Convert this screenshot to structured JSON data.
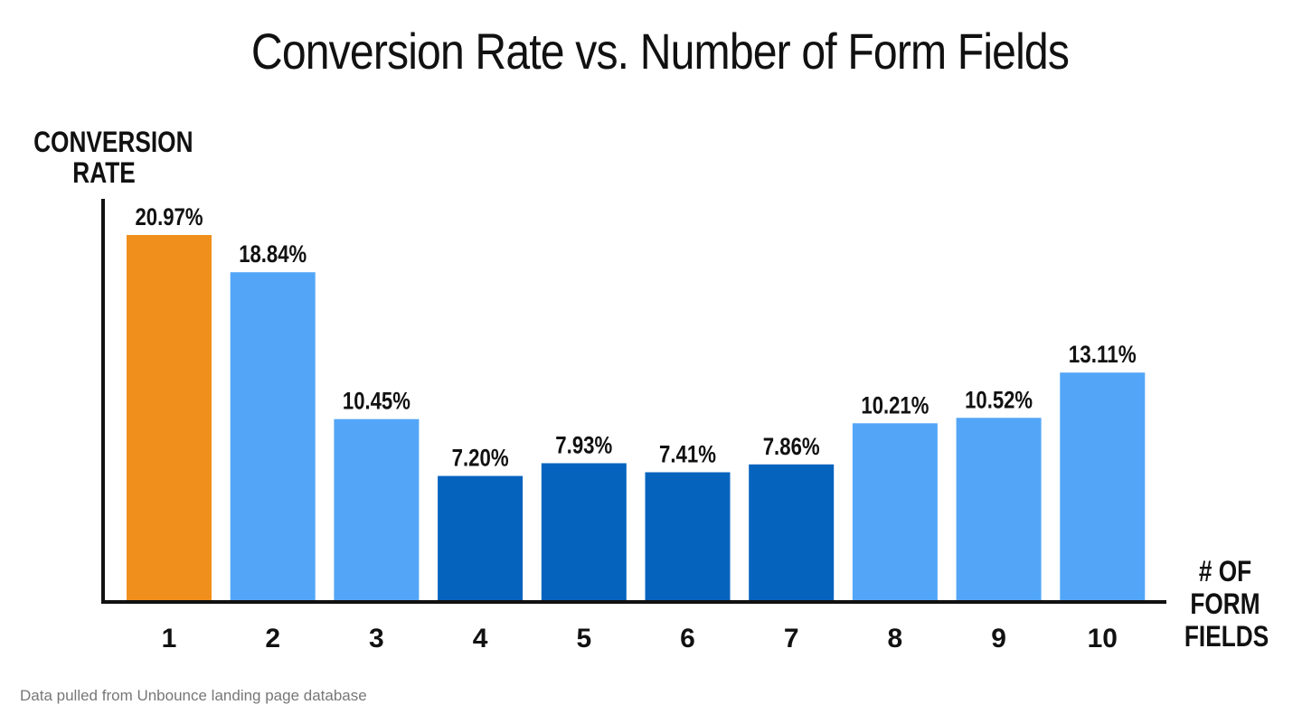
{
  "chart_data": {
    "type": "bar",
    "title": "Conversion Rate vs. Number of Form Fields",
    "ylabel_lines": [
      "CONVERSION",
      "RATE"
    ],
    "xlabel_lines": [
      "# OF",
      "FORM",
      "FIELDS"
    ],
    "categories": [
      "1",
      "2",
      "3",
      "4",
      "5",
      "6",
      "7",
      "8",
      "9",
      "10"
    ],
    "values": [
      20.97,
      18.84,
      10.45,
      7.2,
      7.93,
      7.41,
      7.86,
      10.21,
      10.52,
      13.11
    ],
    "value_labels": [
      "20.97%",
      "18.84%",
      "10.45%",
      "7.20%",
      "7.93%",
      "7.41%",
      "7.86%",
      "10.21%",
      "10.52%",
      "13.11%"
    ],
    "unit": "%",
    "ylim": [
      0,
      24
    ],
    "grid": false,
    "bar_colors": [
      "#F18F1C",
      "#53A6F7",
      "#53A6F7",
      "#0563BE",
      "#0563BE",
      "#0563BE",
      "#0563BE",
      "#53A6F7",
      "#53A6F7",
      "#53A6F7"
    ],
    "footnote": "Data pulled from Unbounce landing page database"
  }
}
